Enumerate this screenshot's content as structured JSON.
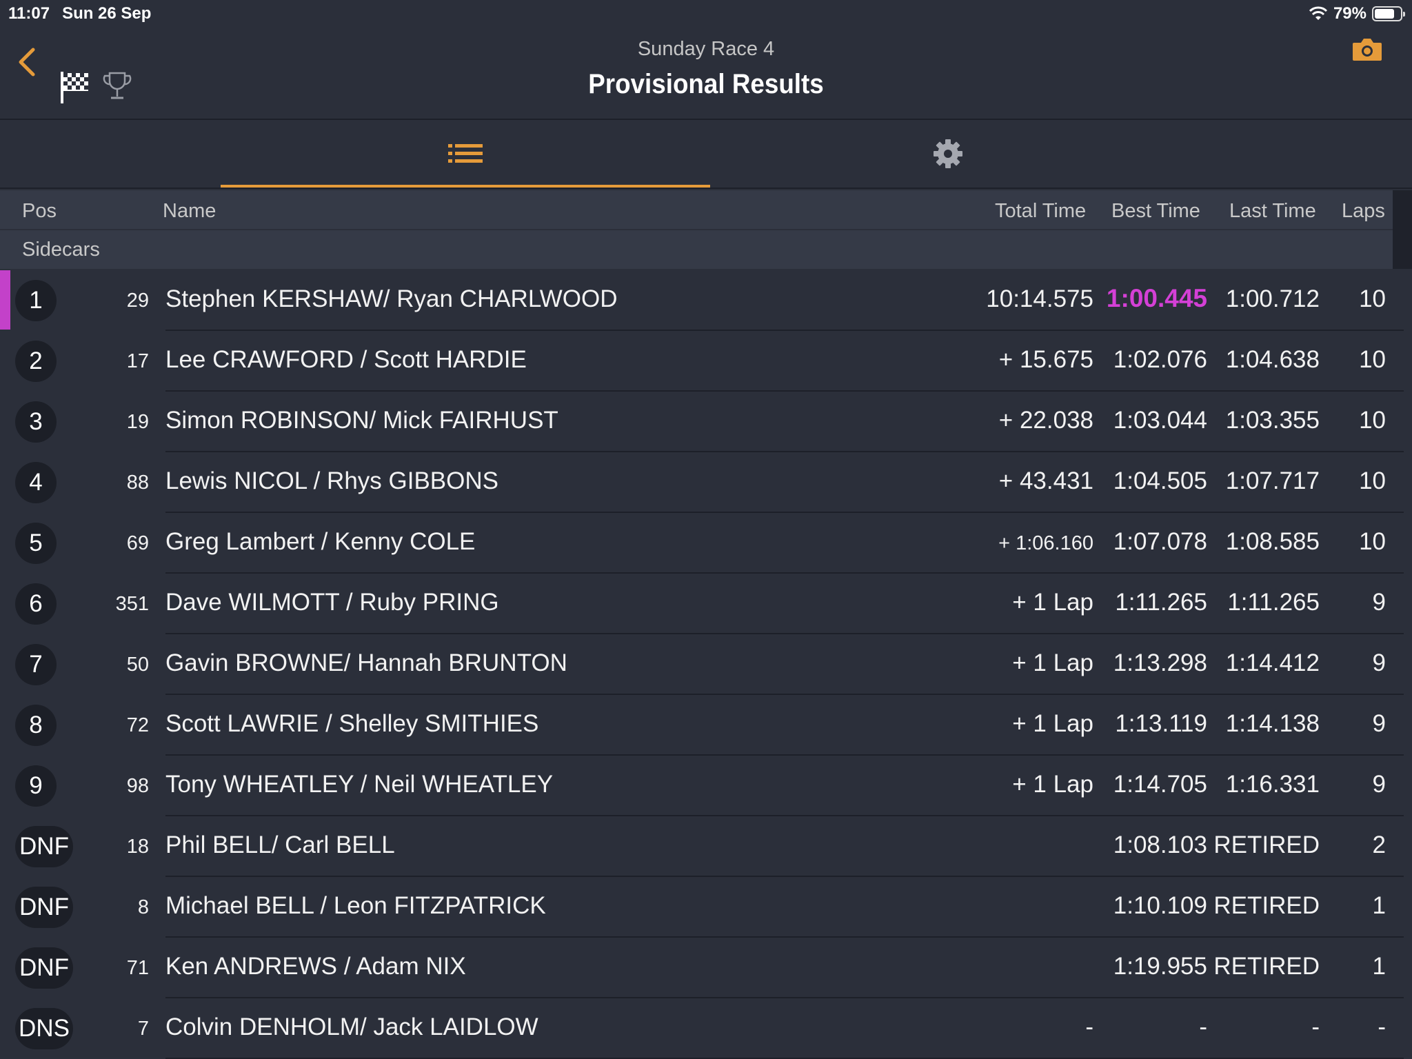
{
  "status_bar": {
    "time": "11:07",
    "date": "Sun 26 Sep",
    "battery": "79%",
    "battery_level": 0.79
  },
  "header": {
    "subtitle": "Sunday Race 4",
    "title": "Provisional Results"
  },
  "columns": {
    "pos": "Pos",
    "name": "Name",
    "total": "Total Time",
    "best": "Best Time",
    "last": "Last Time",
    "laps": "Laps"
  },
  "class_name": "Sidecars",
  "colors": {
    "accent": "#e59b3a",
    "fastest": "#d440d6",
    "background": "#2b2f3a"
  },
  "results": [
    {
      "pos": "1",
      "num": "29",
      "name": "Stephen KERSHAW/ Ryan CHARLWOOD",
      "total": "10:14.575",
      "best": "1:00.445",
      "last": "1:00.712",
      "laps": "10",
      "fastest": true
    },
    {
      "pos": "2",
      "num": "17",
      "name": "Lee CRAWFORD / Scott HARDIE",
      "total": "+ 15.675",
      "best": "1:02.076",
      "last": "1:04.638",
      "laps": "10"
    },
    {
      "pos": "3",
      "num": "19",
      "name": "Simon ROBINSON/ Mick FAIRHUST",
      "total": "+ 22.038",
      "best": "1:03.044",
      "last": "1:03.355",
      "laps": "10"
    },
    {
      "pos": "4",
      "num": "88",
      "name": "Lewis NICOL / Rhys GIBBONS",
      "total": "+ 43.431",
      "best": "1:04.505",
      "last": "1:07.717",
      "laps": "10"
    },
    {
      "pos": "5",
      "num": "69",
      "name": "Greg Lambert / Kenny COLE",
      "total": "+ 1:06.160",
      "best": "1:07.078",
      "last": "1:08.585",
      "laps": "10",
      "small_total": true
    },
    {
      "pos": "6",
      "num": "351",
      "name": "Dave WILMOTT /  Ruby PRING",
      "total": "+ 1 Lap",
      "best": "1:11.265",
      "last": "1:11.265",
      "laps": "9"
    },
    {
      "pos": "7",
      "num": "50",
      "name": "Gavin BROWNE/ Hannah BRUNTON",
      "total": "+ 1 Lap",
      "best": "1:13.298",
      "last": "1:14.412",
      "laps": "9"
    },
    {
      "pos": "8",
      "num": "72",
      "name": "Scott LAWRIE / Shelley SMITHIES",
      "total": "+ 1 Lap",
      "best": "1:13.119",
      "last": "1:14.138",
      "laps": "9"
    },
    {
      "pos": "9",
      "num": "98",
      "name": "Tony WHEATLEY / Neil WHEATLEY",
      "total": "+ 1 Lap",
      "best": "1:14.705",
      "last": "1:16.331",
      "laps": "9"
    },
    {
      "pos": "DNF",
      "num": "18",
      "name": "Phil BELL/ Carl BELL",
      "total": "",
      "best": "1:08.103",
      "last": "RETIRED",
      "laps": "2"
    },
    {
      "pos": "DNF",
      "num": "8",
      "name": "Michael BELL / Leon FITZPATRICK",
      "total": "",
      "best": "1:10.109",
      "last": "RETIRED",
      "laps": "1"
    },
    {
      "pos": "DNF",
      "num": "71",
      "name": "Ken ANDREWS / Adam NIX",
      "total": "",
      "best": "1:19.955",
      "last": "RETIRED",
      "laps": "1"
    },
    {
      "pos": "DNS",
      "num": "7",
      "name": "Colvin DENHOLM/ Jack LAIDLOW",
      "total": "-",
      "best": "-",
      "last": "-",
      "laps": "-"
    }
  ]
}
